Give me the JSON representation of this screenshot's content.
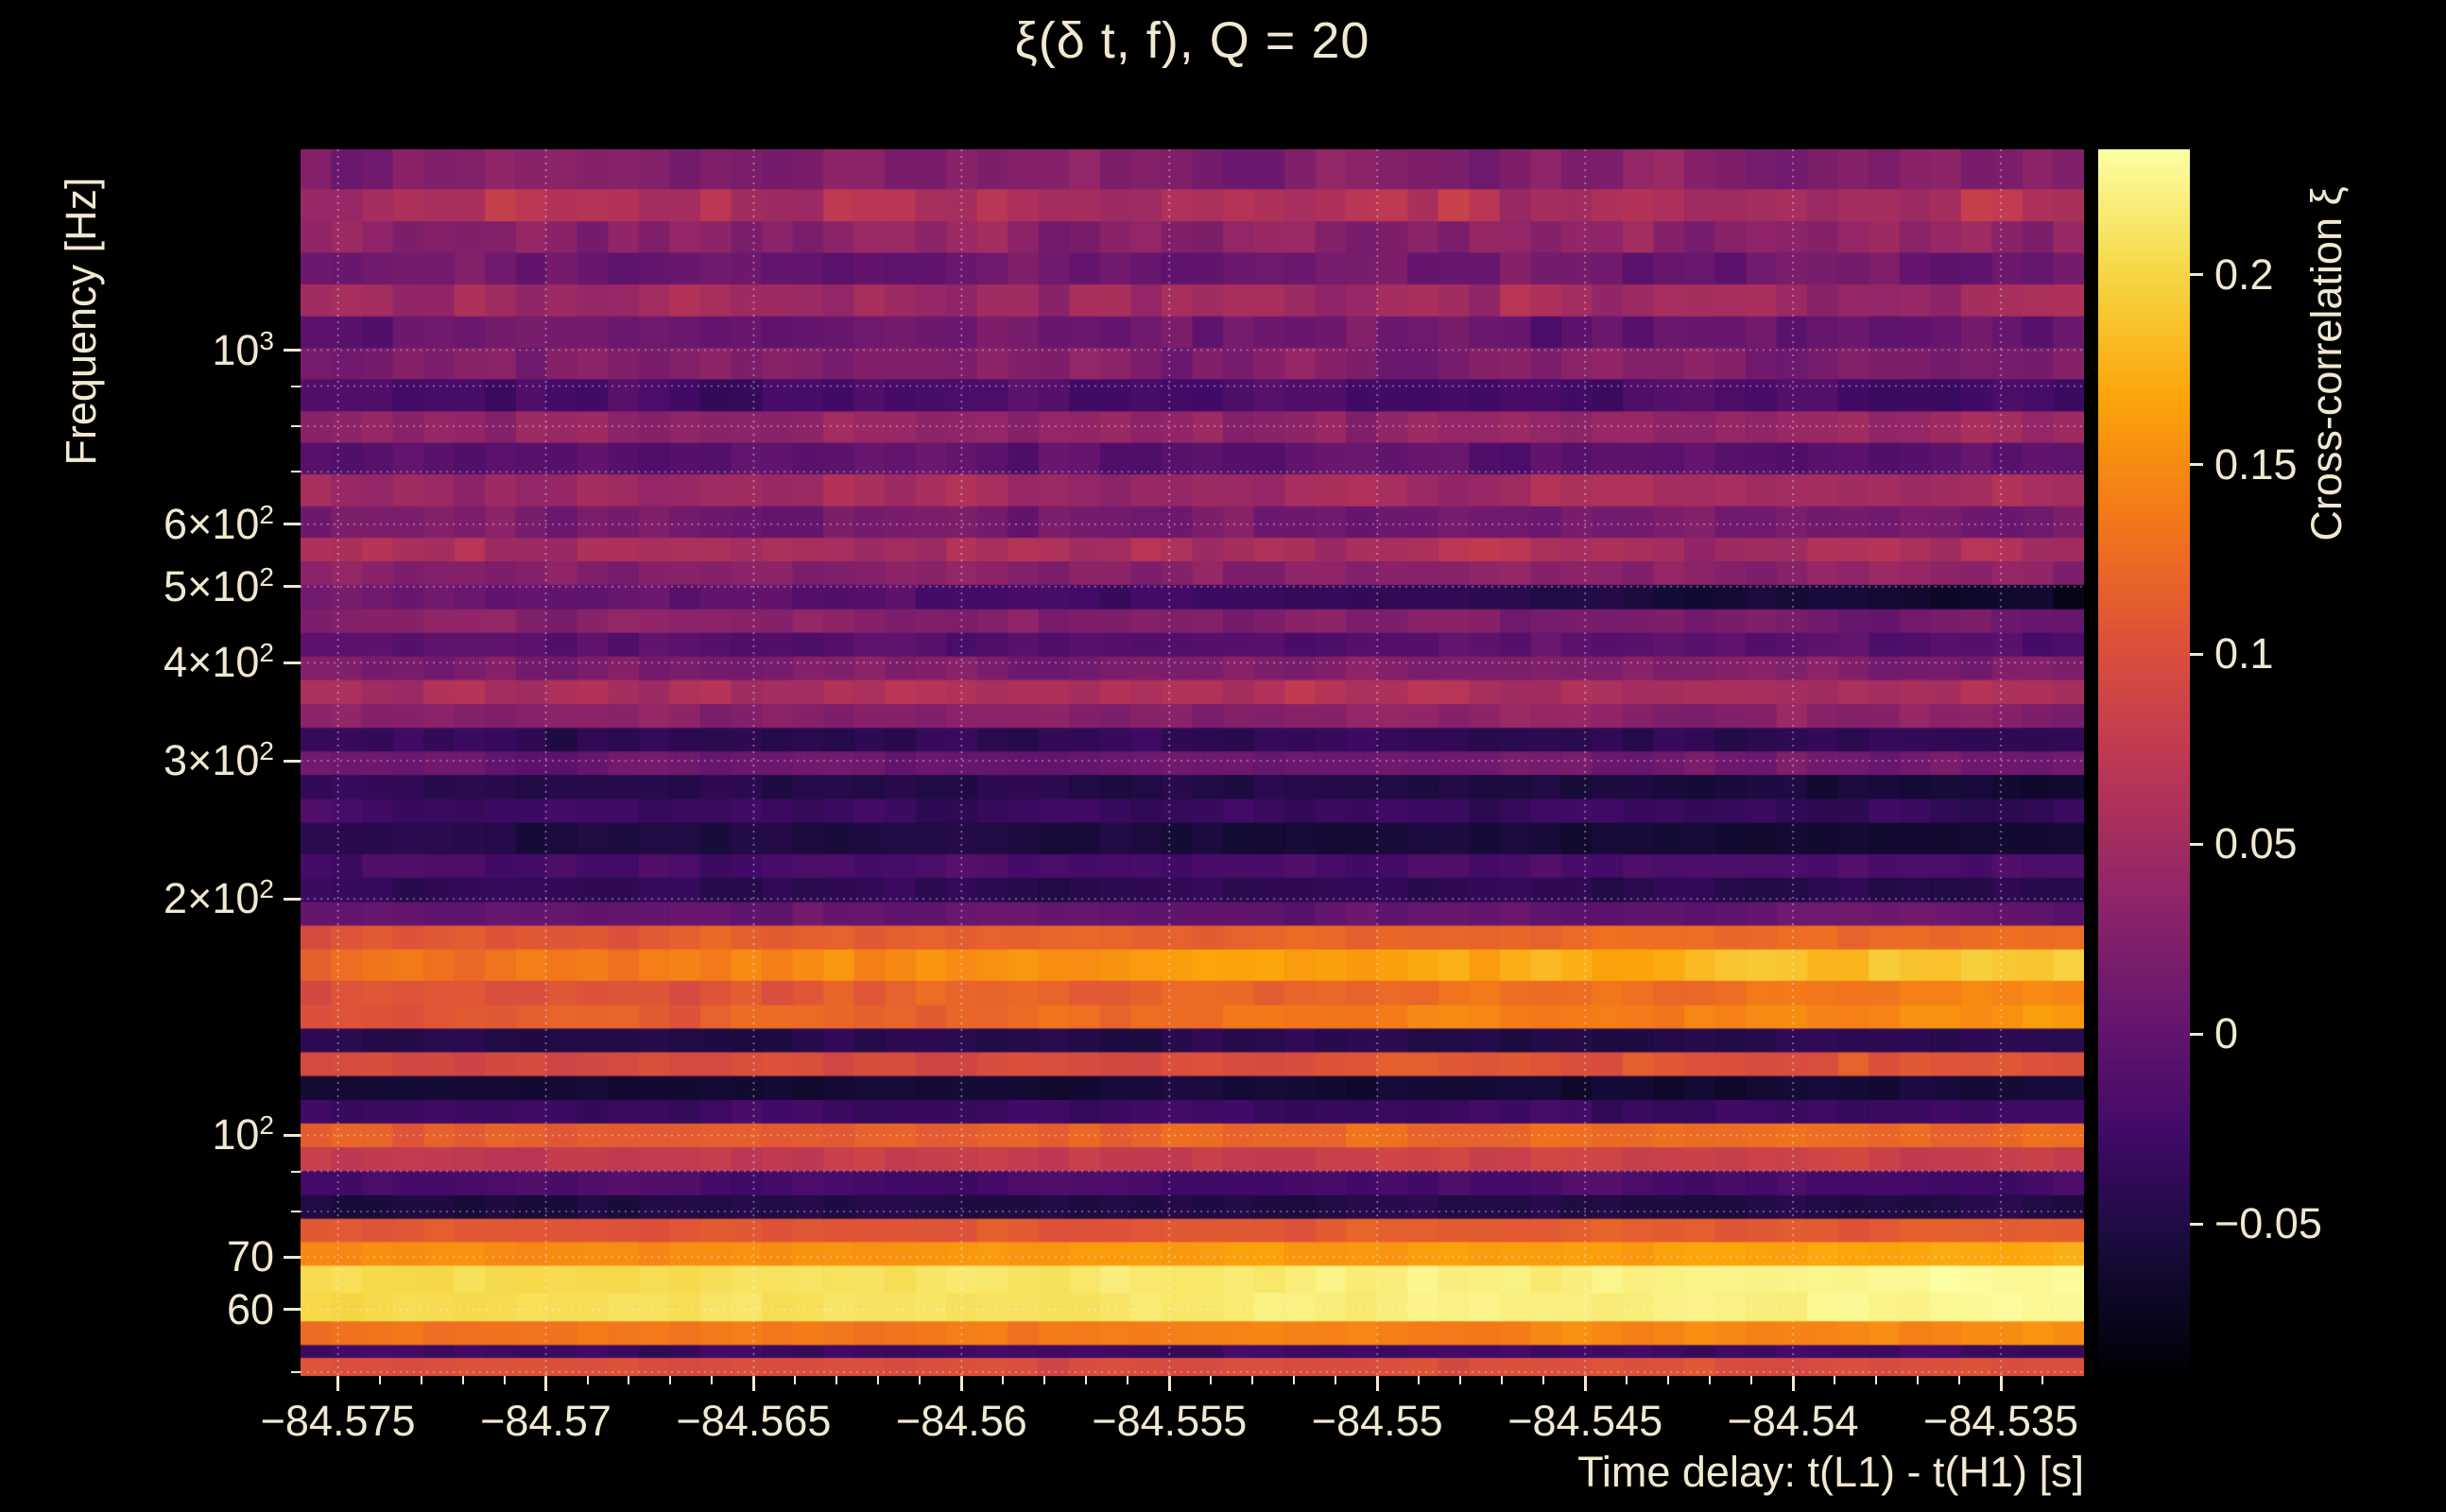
{
  "colors": {
    "background": "#000000",
    "text": "#f1e8d0",
    "grid": "#ffffff"
  },
  "chart_data": {
    "type": "heatmap",
    "title": "ξ(δ t, f), Q = 20",
    "xlabel": "Time delay: t(L1) - t(H1) [s]",
    "ylabel": "Frequency [Hz]",
    "colorbar_label": "Cross-correlation ξ",
    "colormap": "inferno",
    "x_range": [
      -84.5759,
      -84.533
    ],
    "x_ticks": [
      -84.575,
      -84.57,
      -84.565,
      -84.56,
      -84.555,
      -84.55,
      -84.545,
      -84.54,
      -84.535
    ],
    "x_tick_labels": [
      "−84.575",
      "−84.57",
      "−84.565",
      "−84.56",
      "−84.555",
      "−84.55",
      "−84.545",
      "−84.54",
      "−84.535"
    ],
    "x_minor_step": 0.001,
    "y_scale": "log",
    "y_range": [
      49.4,
      1802
    ],
    "y_ticks": [
      {
        "f": 1000,
        "base": "10",
        "sup": "3"
      },
      {
        "f": 600,
        "base": "6×10",
        "sup": "2"
      },
      {
        "f": 500,
        "base": "5×10",
        "sup": "2"
      },
      {
        "f": 400,
        "base": "4×10",
        "sup": "2"
      },
      {
        "f": 300,
        "base": "3×10",
        "sup": "2"
      },
      {
        "f": 200,
        "base": "2×10",
        "sup": "2"
      },
      {
        "f": 100,
        "base": "10",
        "sup": "2"
      },
      {
        "f": 70,
        "base": "70",
        "sup": ""
      },
      {
        "f": 60,
        "base": "60",
        "sup": ""
      }
    ],
    "y_minor_ticks": [
      900,
      800,
      700,
      90,
      80,
      50
    ],
    "y_grid": [
      1000,
      900,
      800,
      700,
      600,
      500,
      400,
      300,
      200,
      100,
      90,
      80,
      70,
      60,
      50
    ],
    "color_range": [
      -0.09,
      0.233
    ],
    "colorbar_ticks": [
      {
        "v": 0.2,
        "label": "0.2"
      },
      {
        "v": 0.15,
        "label": "0.15"
      },
      {
        "v": 0.1,
        "label": "0.1"
      },
      {
        "v": 0.05,
        "label": "0.05"
      },
      {
        "v": 0,
        "label": "0"
      },
      {
        "v": -0.05,
        "label": "−0.05"
      }
    ],
    "columns": 58,
    "band_fields": [
      "f_low_hz",
      "f_high_hz",
      "xi_mean",
      "xi_slope_left_to_right",
      "xi_noise"
    ],
    "bands": [
      [
        49.4,
        52.2,
        0.1,
        0.0,
        0.012
      ],
      [
        52.2,
        54.2,
        -0.03,
        0.0,
        0.01
      ],
      [
        54.2,
        58.1,
        0.14,
        0.02,
        0.012
      ],
      [
        58.1,
        68.4,
        0.215,
        0.025,
        0.008
      ],
      [
        68.4,
        73.3,
        0.16,
        0.02,
        0.01
      ],
      [
        73.3,
        78.5,
        0.11,
        0.01,
        0.012
      ],
      [
        78.5,
        84.1,
        -0.05,
        0.0,
        0.01
      ],
      [
        84.1,
        90.3,
        -0.02,
        0.0,
        0.012
      ],
      [
        90.3,
        96.8,
        0.08,
        0.01,
        0.015
      ],
      [
        96.8,
        103.8,
        0.12,
        0.015,
        0.015
      ],
      [
        103.8,
        111.2,
        -0.03,
        0.0,
        0.012
      ],
      [
        111.2,
        119.3,
        -0.06,
        0.0,
        0.01
      ],
      [
        119.3,
        127.9,
        0.1,
        0.015,
        0.015
      ],
      [
        127.9,
        137.1,
        -0.045,
        0.0,
        0.012
      ],
      [
        137.1,
        146.9,
        0.13,
        0.05,
        0.015
      ],
      [
        146.9,
        157.7,
        0.12,
        0.04,
        0.015
      ],
      [
        157.7,
        172.9,
        0.16,
        0.07,
        0.018
      ],
      [
        172.9,
        185.4,
        0.12,
        0.025,
        0.015
      ],
      [
        185.4,
        198.6,
        0.0,
        0.0,
        0.015
      ],
      [
        198.6,
        213.3,
        -0.04,
        -0.01,
        0.012
      ],
      [
        213.3,
        228.6,
        -0.02,
        0.0,
        0.015
      ],
      [
        228.6,
        250.7,
        -0.055,
        -0.015,
        0.012
      ],
      [
        250.7,
        268.8,
        -0.03,
        -0.01,
        0.015
      ],
      [
        268.8,
        288.4,
        -0.05,
        -0.02,
        0.012
      ],
      [
        288.4,
        309.0,
        0.01,
        0.0,
        0.018
      ],
      [
        309.0,
        331.1,
        -0.04,
        0.0,
        0.015
      ],
      [
        331.1,
        355.0,
        0.03,
        0.0,
        0.02
      ],
      [
        355.0,
        381.0,
        0.06,
        0.0,
        0.02
      ],
      [
        381.0,
        408.3,
        0.02,
        0.0,
        0.02
      ],
      [
        408.3,
        437.5,
        -0.01,
        0.0,
        0.02
      ],
      [
        437.5,
        468.8,
        0.02,
        -0.03,
        0.02
      ],
      [
        468.8,
        503.5,
        -0.03,
        -0.09,
        0.015
      ],
      [
        503.5,
        539.5,
        0.03,
        0.0,
        0.02
      ],
      [
        539.5,
        578.1,
        0.055,
        0.0,
        0.022
      ],
      [
        578.1,
        634.0,
        0.015,
        0.0,
        0.022
      ],
      [
        634.0,
        696.6,
        0.05,
        0.0,
        0.022
      ],
      [
        696.6,
        763.8,
        -0.005,
        0.0,
        0.02
      ],
      [
        763.8,
        837.5,
        0.04,
        0.0,
        0.022
      ],
      [
        837.5,
        920.0,
        -0.02,
        0.0,
        0.02
      ],
      [
        920.0,
        1009.3,
        0.025,
        0.0,
        0.022
      ],
      [
        1009.3,
        1106.7,
        0.005,
        0.0,
        0.028
      ],
      [
        1106.7,
        1215.6,
        0.05,
        0.0,
        0.028
      ],
      [
        1215.6,
        1333.5,
        0.01,
        0.0,
        0.025
      ],
      [
        1333.5,
        1462.2,
        0.035,
        0.0,
        0.028
      ],
      [
        1462.2,
        1606.6,
        0.06,
        0.0,
        0.028
      ],
      [
        1606.6,
        1802.0,
        0.025,
        0.0,
        0.028
      ]
    ]
  }
}
